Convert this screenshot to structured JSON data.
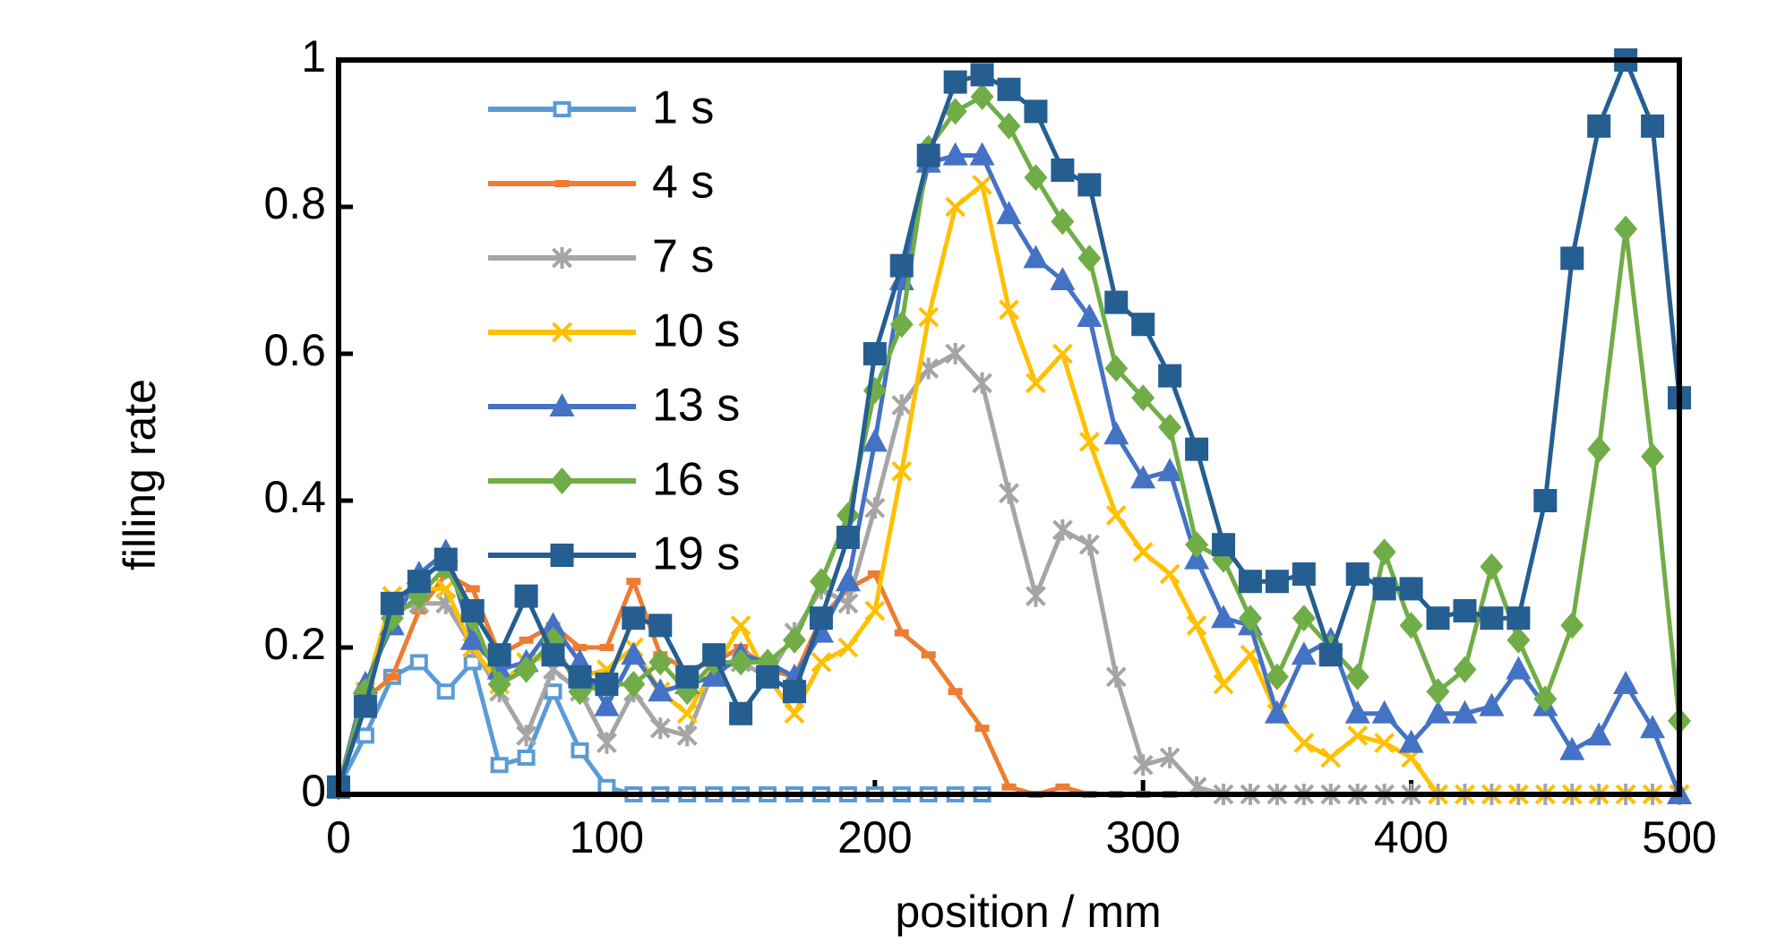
{
  "chart_data": {
    "type": "line",
    "x_label": "position / mm",
    "y_label": "filling rate",
    "xlim": [
      0,
      500
    ],
    "ylim": [
      0,
      1
    ],
    "xticks": [
      0,
      100,
      200,
      300,
      400,
      500
    ],
    "yticks": [
      0,
      0.2,
      0.4,
      0.6,
      0.8,
      1
    ],
    "legend": "upper left",
    "x": [
      0,
      10,
      20,
      30,
      40,
      50,
      60,
      70,
      80,
      90,
      100,
      110,
      120,
      130,
      140,
      150,
      160,
      170,
      180,
      190,
      200,
      210,
      220,
      230,
      240,
      250,
      260,
      270,
      280,
      290,
      300,
      310,
      320,
      330,
      340,
      350,
      360,
      370,
      380,
      390,
      400,
      410,
      420,
      430,
      440,
      450,
      460,
      470,
      480,
      490,
      500
    ],
    "series": [
      {
        "name": "1 s",
        "color": "#5b9bd5",
        "marker": "square-open",
        "values": [
          0.01,
          0.08,
          0.16,
          0.18,
          0.14,
          0.18,
          0.04,
          0.05,
          0.14,
          0.06,
          0.01,
          0,
          0,
          0,
          0,
          0,
          0,
          0,
          0,
          0,
          0,
          0,
          0,
          0,
          0,
          null,
          null,
          null,
          null,
          null,
          null,
          null,
          null,
          null,
          null,
          null,
          null,
          null,
          null,
          null,
          null,
          null,
          null,
          null,
          null,
          null,
          null,
          null,
          null,
          null,
          null
        ]
      },
      {
        "name": "4 s",
        "color": "#ed7d31",
        "marker": "dash",
        "values": [
          0.01,
          0.13,
          0.16,
          0.25,
          0.3,
          0.28,
          0.19,
          0.21,
          0.23,
          0.2,
          0.2,
          0.29,
          0.19,
          0.17,
          0.18,
          0.2,
          0.17,
          0.16,
          0.24,
          0.28,
          0.3,
          0.22,
          0.19,
          0.14,
          0.09,
          0.01,
          0,
          0.01,
          0,
          0,
          0,
          0,
          null,
          null,
          null,
          null,
          null,
          null,
          null,
          null,
          null,
          null,
          null,
          null,
          null,
          null,
          null,
          null,
          null,
          null,
          null
        ]
      },
      {
        "name": "7 s",
        "color": "#a5a5a5",
        "marker": "star",
        "values": [
          0.01,
          0.13,
          0.25,
          0.26,
          0.26,
          0.2,
          0.14,
          0.08,
          0.17,
          0.14,
          0.07,
          0.14,
          0.09,
          0.08,
          0.17,
          0.18,
          0.16,
          0.22,
          0.28,
          0.26,
          0.39,
          0.53,
          0.58,
          0.6,
          0.56,
          0.41,
          0.27,
          0.36,
          0.34,
          0.16,
          0.04,
          0.05,
          0.01,
          0,
          0,
          0,
          0,
          0,
          0,
          0,
          0,
          0,
          0,
          0,
          0,
          0,
          0,
          0,
          0,
          0,
          0
        ]
      },
      {
        "name": "10 s",
        "color": "#ffc000",
        "marker": "x",
        "values": [
          0.01,
          0.14,
          0.27,
          0.28,
          0.28,
          0.2,
          0.15,
          0.18,
          0.19,
          0.16,
          0.17,
          0.2,
          0.14,
          0.11,
          0.17,
          0.23,
          0.16,
          0.11,
          0.18,
          0.2,
          0.25,
          0.44,
          0.65,
          0.8,
          0.83,
          0.66,
          0.56,
          0.6,
          0.48,
          0.38,
          0.33,
          0.3,
          0.23,
          0.15,
          0.19,
          0.11,
          0.07,
          0.05,
          0.08,
          0.07,
          0.05,
          0,
          0,
          0,
          0,
          0,
          0,
          0,
          0,
          0,
          0
        ]
      },
      {
        "name": "13 s",
        "color": "#4472c4",
        "marker": "triangle",
        "values": [
          0.01,
          0.15,
          0.23,
          0.3,
          0.33,
          0.21,
          0.17,
          0.18,
          0.23,
          0.18,
          0.12,
          0.19,
          0.14,
          0.15,
          0.16,
          0.19,
          0.18,
          0.16,
          0.22,
          0.29,
          0.48,
          0.7,
          0.86,
          0.87,
          0.87,
          0.79,
          0.73,
          0.7,
          0.65,
          0.49,
          0.43,
          0.44,
          0.32,
          0.24,
          0.23,
          0.11,
          0.19,
          0.21,
          0.11,
          0.11,
          0.07,
          0.11,
          0.11,
          0.12,
          0.17,
          0.12,
          0.06,
          0.08,
          0.15,
          0.09,
          0
        ]
      },
      {
        "name": "16 s",
        "color": "#70ad47",
        "marker": "diamond",
        "values": [
          0.01,
          0.14,
          0.24,
          0.27,
          0.31,
          0.24,
          0.15,
          0.17,
          0.21,
          0.14,
          0.15,
          0.15,
          0.18,
          0.14,
          0.18,
          0.18,
          0.18,
          0.21,
          0.29,
          0.38,
          0.55,
          0.64,
          0.88,
          0.93,
          0.95,
          0.91,
          0.84,
          0.78,
          0.73,
          0.58,
          0.54,
          0.5,
          0.34,
          0.32,
          0.24,
          0.16,
          0.24,
          0.2,
          0.16,
          0.33,
          0.23,
          0.14,
          0.17,
          0.31,
          0.21,
          0.13,
          0.23,
          0.47,
          0.77,
          0.46,
          0.1
        ]
      },
      {
        "name": "19 s",
        "color": "#255e91",
        "marker": "square",
        "values": [
          0.01,
          0.12,
          0.26,
          0.29,
          0.32,
          0.25,
          0.19,
          0.27,
          0.19,
          0.16,
          0.15,
          0.24,
          0.23,
          0.16,
          0.19,
          0.11,
          0.16,
          0.14,
          0.24,
          0.35,
          0.6,
          0.72,
          0.87,
          0.97,
          0.98,
          0.96,
          0.93,
          0.85,
          0.83,
          0.67,
          0.64,
          0.57,
          0.47,
          0.34,
          0.29,
          0.29,
          0.3,
          0.19,
          0.3,
          0.28,
          0.28,
          0.24,
          0.25,
          0.24,
          0.24,
          0.4,
          0.73,
          0.91,
          1.0,
          0.91,
          0.54
        ]
      }
    ]
  }
}
